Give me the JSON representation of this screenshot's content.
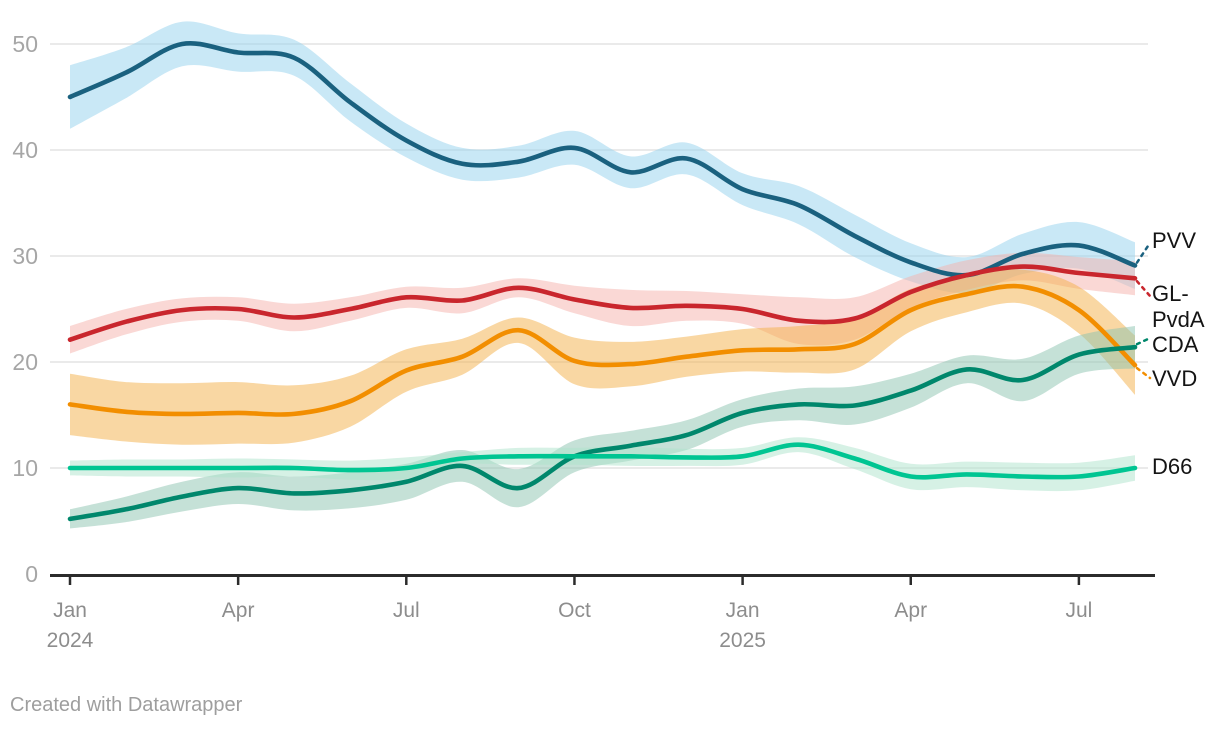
{
  "chart_data": {
    "type": "line",
    "title": "",
    "grid": true,
    "ylim": [
      0,
      52
    ],
    "y_ticks": [
      0,
      10,
      20,
      30,
      40,
      50
    ],
    "y_tick_labels": [
      "0",
      "10",
      "20",
      "30",
      "40",
      "50"
    ],
    "x_months": [
      "Jan 2024",
      "Feb 2024",
      "Mar 2024",
      "Apr 2024",
      "May 2024",
      "Jun 2024",
      "Jul 2024",
      "Aug 2024",
      "Sep 2024",
      "Oct 2024",
      "Nov 2024",
      "Dec 2024",
      "Jan 2025",
      "Feb 2025",
      "Mar 2025",
      "Apr 2025",
      "May 2025",
      "Jun 2025",
      "Jul 2025",
      "Aug 2025"
    ],
    "x_ticks": [
      {
        "m": 0,
        "label": "Jan",
        "year": "2024"
      },
      {
        "m": 3,
        "label": "Apr",
        "year": ""
      },
      {
        "m": 6,
        "label": "Jul",
        "year": ""
      },
      {
        "m": 9,
        "label": "Oct",
        "year": ""
      },
      {
        "m": 12,
        "label": "Jan",
        "year": "2025"
      },
      {
        "m": 15,
        "label": "Apr",
        "year": ""
      },
      {
        "m": 18,
        "label": "Jul",
        "year": ""
      }
    ],
    "legend_position": "right-edge-labels",
    "series": [
      {
        "name": "PVV",
        "label_lines": [
          "PVV"
        ],
        "color": "#1a617f",
        "band_color": "#93d1ed",
        "values": [
          45.0,
          47.3,
          50.0,
          49.2,
          48.7,
          44.5,
          40.9,
          38.7,
          38.9,
          40.2,
          37.9,
          39.2,
          36.3,
          34.8,
          31.9,
          29.4,
          28.2,
          30.2,
          31.0,
          29.1
        ],
        "band_halfwidth": [
          3.0,
          2.4,
          2.1,
          1.8,
          1.7,
          1.8,
          1.6,
          1.5,
          1.5,
          1.6,
          1.5,
          1.5,
          1.5,
          1.8,
          2.0,
          1.8,
          1.7,
          1.9,
          2.2,
          2.2
        ]
      },
      {
        "name": "GL-PvdA",
        "label_lines": [
          "GL-",
          "PvdA"
        ],
        "color": "#c9262d",
        "band_color": "#f5b1ab",
        "values": [
          22.1,
          23.8,
          24.9,
          25.0,
          24.2,
          25.0,
          26.1,
          25.8,
          27.0,
          25.9,
          25.1,
          25.3,
          25.0,
          23.9,
          24.1,
          26.6,
          28.2,
          29.0,
          28.4,
          27.9
        ],
        "band_halfwidth": [
          1.3,
          1.2,
          1.1,
          1.1,
          1.3,
          1.1,
          1.0,
          1.2,
          0.9,
          1.3,
          1.7,
          1.4,
          1.4,
          2.2,
          2.0,
          1.5,
          1.4,
          1.3,
          1.5,
          1.6
        ]
      },
      {
        "name": "VVD",
        "label_lines": [
          "VVD"
        ],
        "color": "#f28e00",
        "band_color": "#f3af47",
        "values": [
          16.0,
          15.3,
          15.1,
          15.2,
          15.1,
          16.3,
          19.2,
          20.5,
          23.0,
          20.1,
          19.8,
          20.5,
          21.1,
          21.2,
          21.7,
          24.9,
          26.4,
          27.1,
          24.9,
          19.7
        ],
        "band_halfwidth": [
          2.9,
          2.8,
          2.9,
          2.9,
          2.7,
          2.4,
          2.0,
          1.7,
          1.2,
          2.2,
          2.1,
          1.9,
          2.0,
          2.2,
          2.4,
          2.0,
          1.7,
          1.6,
          2.2,
          2.8
        ]
      },
      {
        "name": "CDA",
        "label_lines": [
          "CDA"
        ],
        "color": "#00876c",
        "band_color": "#8bc3af",
        "values": [
          5.2,
          6.1,
          7.3,
          8.1,
          7.6,
          7.9,
          8.7,
          10.2,
          8.1,
          11.1,
          12.1,
          13.1,
          15.2,
          16.0,
          15.9,
          17.3,
          19.3,
          18.3,
          20.7,
          21.4
        ],
        "band_halfwidth": [
          0.9,
          1.2,
          1.4,
          1.5,
          1.6,
          1.7,
          1.7,
          1.5,
          1.8,
          1.5,
          1.4,
          1.4,
          1.3,
          1.5,
          1.8,
          1.6,
          1.3,
          2.0,
          1.8,
          2.0
        ]
      },
      {
        "name": "D66",
        "label_lines": [
          "D66"
        ],
        "color": "#00c592",
        "band_color": "#ade3cb",
        "values": [
          10.0,
          10.0,
          10.0,
          10.0,
          10.0,
          9.8,
          10.0,
          10.9,
          11.1,
          11.1,
          11.1,
          11.0,
          11.1,
          12.2,
          10.9,
          9.2,
          9.4,
          9.2,
          9.2,
          10.0
        ],
        "band_halfwidth": [
          0.7,
          0.8,
          0.8,
          0.9,
          0.8,
          0.9,
          1.0,
          0.6,
          0.8,
          0.8,
          0.9,
          0.8,
          0.8,
          0.7,
          1.0,
          1.2,
          1.2,
          1.3,
          1.3,
          1.2
        ]
      }
    ],
    "colors": {
      "gridline": "#e4e4e4",
      "axis": "#2b2b2b",
      "y_tick_text": "#a6a6a6",
      "x_tick_text": "#8d8d8d",
      "label_text": "#141414"
    }
  },
  "footer": {
    "credit": "Created with Datawrapper"
  }
}
